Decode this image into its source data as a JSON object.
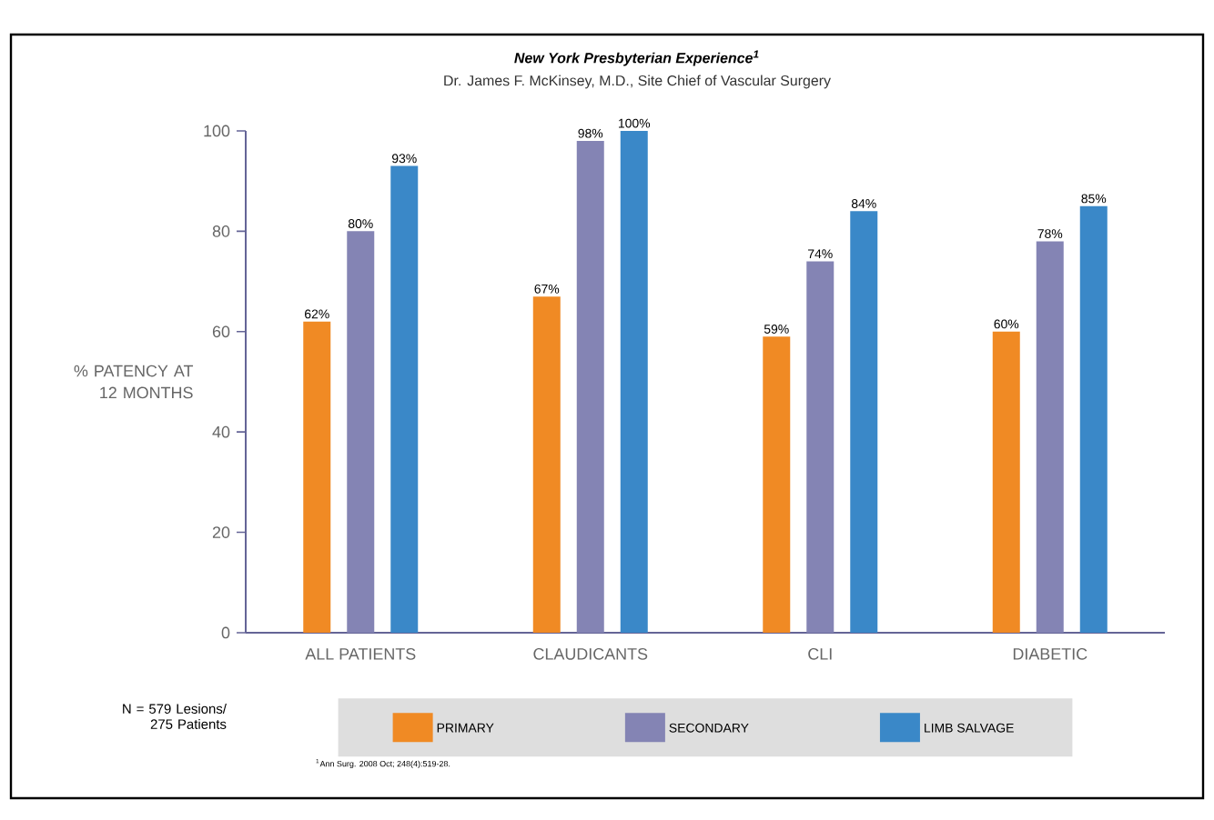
{
  "chart_data": {
    "type": "bar",
    "title": "New York Presbyterian Experience$^{1}$",
    "subtitle": "Dr. James F. McKinsey, M.D., Site Chief of Vascular Surgery",
    "ylabel": "% PATENCY AT 12 MONTHS",
    "categories": [
      "ALL PATIENTS",
      "CLAUDICANTS",
      "CLI",
      "DIABETIC"
    ],
    "series": [
      {
        "name": "PRIMARY",
        "color": "#f08a24",
        "values": [
          62,
          67,
          59,
          60
        ],
        "value_labels": [
          "62%",
          "67%",
          "59%",
          "60%"
        ]
      },
      {
        "name": "SECONDARY",
        "color": "#8484b4",
        "values": [
          80,
          98,
          74,
          78
        ],
        "value_labels": [
          "80%",
          "98%",
          "74%",
          "78%"
        ]
      },
      {
        "name": "LIMB SALVAGE",
        "color": "#3a88c8",
        "values": [
          93,
          100,
          84,
          85
        ],
        "value_labels": [
          "93%",
          "100%",
          "84%",
          "85%"
        ]
      }
    ],
    "ylim": [
      0,
      100
    ],
    "yticks": [
      0,
      20,
      40,
      60,
      80,
      100
    ],
    "grid": false,
    "legend": "bottom",
    "annotations": [
      "N = 579 Lesions/ 275 Patients",
      "$^{1}$Ann Surg. 2008 Oct; 248(4):519-28."
    ]
  }
}
